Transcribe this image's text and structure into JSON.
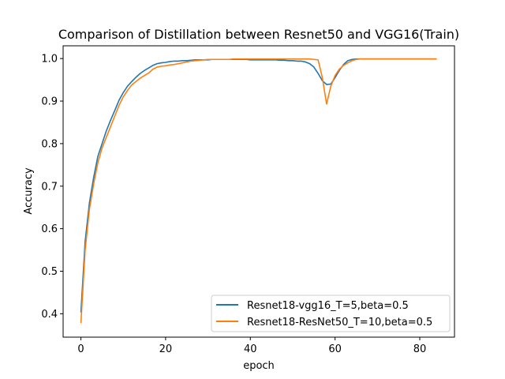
{
  "chart_data": {
    "type": "line",
    "title": "Comparison of Distillation between Resnet50 and VGG16(Train)",
    "xlabel": "epoch",
    "ylabel": "Accuracy",
    "xlim": [
      -4.2,
      88.2
    ],
    "ylim": [
      0.345,
      1.03
    ],
    "xticks": [
      0,
      20,
      40,
      60,
      80
    ],
    "yticks": [
      0.4,
      0.5,
      0.6,
      0.7,
      0.8,
      0.9,
      1.0
    ],
    "ytick_labels": [
      "0.4",
      "0.5",
      "0.6",
      "0.7",
      "0.8",
      "0.9",
      "1.0"
    ],
    "grid": false,
    "legend_position": "lower-right",
    "series": [
      {
        "name": "Resnet18-vgg16_T=5,beta=0.5",
        "color": "#1f77b4",
        "x": [
          0,
          1,
          2,
          3,
          4,
          5,
          6,
          7,
          8,
          9,
          10,
          11,
          12,
          13,
          14,
          15,
          16,
          17,
          18,
          19,
          20,
          21,
          22,
          23,
          24,
          25,
          26,
          27,
          28,
          29,
          30,
          31,
          32,
          33,
          34,
          35,
          36,
          37,
          38,
          39,
          40,
          41,
          42,
          43,
          44,
          45,
          46,
          47,
          48,
          49,
          50,
          51,
          52,
          53,
          54,
          55,
          56,
          57,
          58,
          59,
          60,
          61,
          62,
          63,
          64,
          65,
          66,
          67,
          68,
          69,
          70,
          71,
          72,
          73,
          74,
          75,
          76,
          77,
          78,
          79,
          80,
          81,
          82,
          83,
          84
        ],
        "y": [
          0.403,
          0.57,
          0.66,
          0.72,
          0.77,
          0.8,
          0.83,
          0.855,
          0.878,
          0.902,
          0.92,
          0.935,
          0.946,
          0.956,
          0.965,
          0.972,
          0.978,
          0.984,
          0.988,
          0.99,
          0.991,
          0.993,
          0.994,
          0.994,
          0.995,
          0.995,
          0.996,
          0.997,
          0.997,
          0.997,
          0.997,
          0.998,
          0.998,
          0.998,
          0.998,
          0.998,
          0.998,
          0.998,
          0.998,
          0.998,
          0.997,
          0.997,
          0.997,
          0.997,
          0.997,
          0.997,
          0.997,
          0.996,
          0.996,
          0.995,
          0.995,
          0.994,
          0.994,
          0.992,
          0.988,
          0.98,
          0.965,
          0.948,
          0.939,
          0.94,
          0.955,
          0.972,
          0.986,
          0.995,
          0.998,
          0.999,
          0.999,
          0.999,
          0.999,
          0.999,
          0.999,
          0.999,
          0.999,
          0.999,
          0.999,
          0.999,
          0.999,
          0.999,
          0.999,
          0.999,
          0.999,
          0.999,
          0.999,
          0.999,
          0.999
        ]
      },
      {
        "name": "Resnet18-ResNet50_T=10,beta=0.5",
        "color": "#ff7f0e",
        "x": [
          0,
          1,
          2,
          3,
          4,
          5,
          6,
          7,
          8,
          9,
          10,
          11,
          12,
          13,
          14,
          15,
          16,
          17,
          18,
          19,
          20,
          21,
          22,
          23,
          24,
          25,
          26,
          27,
          28,
          29,
          30,
          31,
          32,
          33,
          34,
          35,
          36,
          37,
          38,
          39,
          40,
          41,
          42,
          43,
          44,
          45,
          46,
          47,
          48,
          49,
          50,
          51,
          52,
          53,
          54,
          55,
          56,
          57,
          58,
          59,
          60,
          61,
          62,
          63,
          64,
          65,
          66,
          67,
          68,
          69,
          70,
          71,
          72,
          73,
          74,
          75,
          76,
          77,
          78,
          79,
          80,
          81,
          82,
          83,
          84
        ],
        "y": [
          0.378,
          0.55,
          0.645,
          0.705,
          0.755,
          0.79,
          0.815,
          0.84,
          0.865,
          0.89,
          0.91,
          0.925,
          0.938,
          0.946,
          0.954,
          0.96,
          0.966,
          0.975,
          0.98,
          0.982,
          0.983,
          0.985,
          0.986,
          0.988,
          0.99,
          0.992,
          0.994,
          0.995,
          0.996,
          0.997,
          0.998,
          0.998,
          0.998,
          0.998,
          0.998,
          0.998,
          0.999,
          0.999,
          0.999,
          0.999,
          0.999,
          0.999,
          0.999,
          0.999,
          0.999,
          0.999,
          0.999,
          0.999,
          0.999,
          0.999,
          0.999,
          0.999,
          0.999,
          0.999,
          0.999,
          0.998,
          0.997,
          0.955,
          0.893,
          0.935,
          0.96,
          0.975,
          0.984,
          0.99,
          0.995,
          0.998,
          0.999,
          0.999,
          0.999,
          0.999,
          0.999,
          0.999,
          0.999,
          0.999,
          0.999,
          0.999,
          0.999,
          0.999,
          0.999,
          0.999,
          0.999,
          0.999,
          0.999,
          0.999,
          0.999
        ]
      }
    ]
  }
}
